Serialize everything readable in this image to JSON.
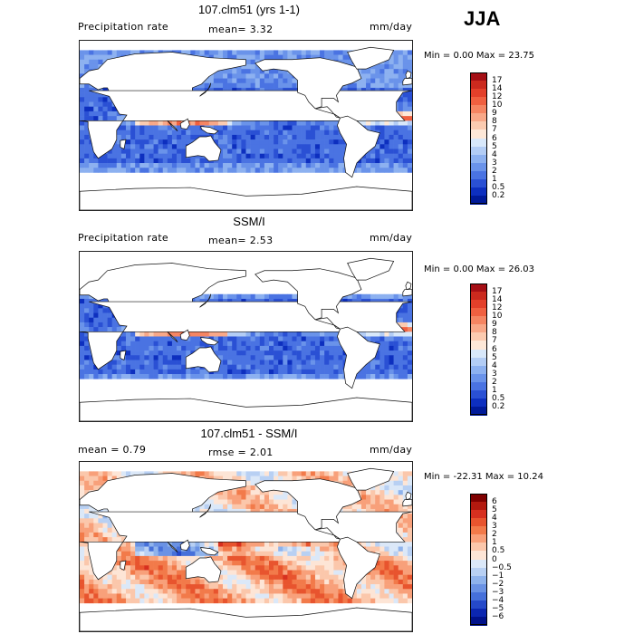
{
  "season": "JJA",
  "panels": [
    {
      "title": "107.clm51 (yrs 1-1)",
      "left_label": "Precipitation rate",
      "mid_label": "mean=   3.32",
      "units": "mm/day",
      "minmax": "Min =   0.00 Max =  23.75",
      "kind": "model",
      "colorbar": {
        "labels": [
          "17",
          "14",
          "12",
          "10",
          "9",
          "8",
          "7",
          "6",
          "5",
          "4",
          "3",
          "2",
          "1",
          "0.5",
          "0.2"
        ],
        "colors": [
          "#a50f15",
          "#cb2a1e",
          "#e3402a",
          "#f06040",
          "#f58562",
          "#f8a888",
          "#fbcbb0",
          "#fde8d8",
          "#d8e8fa",
          "#b3cdf5",
          "#8db1f0",
          "#6a93ea",
          "#4a73e2",
          "#2a50d4",
          "#0d2fbf",
          "#001a99"
        ]
      }
    },
    {
      "title": "SSM/I",
      "left_label": "Precipitation rate",
      "mid_label": "mean=   2.53",
      "units": "mm/day",
      "minmax": "Min =   0.00 Max =  26.03",
      "kind": "obs",
      "colorbar": {
        "labels": [
          "17",
          "14",
          "12",
          "10",
          "9",
          "8",
          "7",
          "6",
          "5",
          "4",
          "3",
          "2",
          "1",
          "0.5",
          "0.2"
        ],
        "colors": [
          "#a50f15",
          "#cb2a1e",
          "#e3402a",
          "#f06040",
          "#f58562",
          "#f8a888",
          "#fbcbb0",
          "#fde8d8",
          "#d8e8fa",
          "#b3cdf5",
          "#8db1f0",
          "#6a93ea",
          "#4a73e2",
          "#2a50d4",
          "#0d2fbf",
          "#001a99"
        ]
      }
    },
    {
      "title": "107.clm51 - SSM/I",
      "left_label": "mean =    0.79",
      "mid_label": "rmse =    2.01",
      "units": "mm/day",
      "minmax": "Min = -22.31 Max =  10.24",
      "kind": "diff",
      "colorbar": {
        "labels": [
          "6",
          "5",
          "4",
          "3",
          "2",
          "1",
          "0.5",
          "0",
          "−0.5",
          "−1",
          "−2",
          "−3",
          "−4",
          "−5",
          "−6"
        ],
        "colors": [
          "#7f0000",
          "#b3190f",
          "#d7301f",
          "#e8542e",
          "#f27a4a",
          "#f8a07a",
          "#fbc7ab",
          "#fde5d6",
          "#dbe8f8",
          "#b8d0f3",
          "#8fb3ec",
          "#6a92e4",
          "#4670da",
          "#2549c9",
          "#0b26b0",
          "#00118a"
        ]
      }
    }
  ]
}
